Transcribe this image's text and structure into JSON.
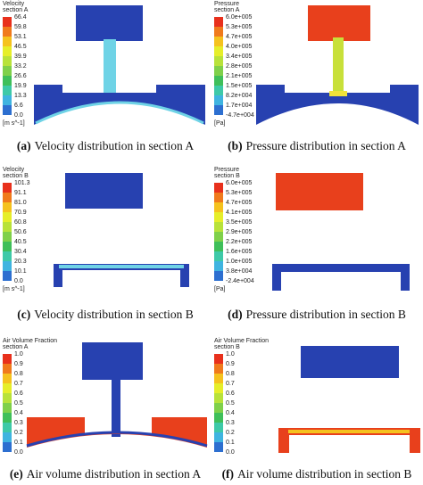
{
  "panels": [
    {
      "caption": {
        "label": "(a)",
        "text": "Velocity distribution in section A"
      },
      "legend": {
        "title": [
          "Velocity",
          "section A"
        ],
        "labels": [
          "66.4",
          "59.8",
          "53.1",
          "46.5",
          "39.9",
          "33.2",
          "26.6",
          "19.9",
          "13.3",
          "6.6",
          "0.0"
        ],
        "unit": "[m s^-1]"
      }
    },
    {
      "caption": {
        "label": "(b)",
        "text": "Pressure distribution in section A"
      },
      "legend": {
        "title": [
          "Pressure",
          "section A"
        ],
        "labels": [
          "6.0e+005",
          "5.3e+005",
          "4.7e+005",
          "4.0e+005",
          "3.4e+005",
          "2.8e+005",
          "2.1e+005",
          "1.5e+005",
          "8.2e+004",
          "1.7e+004",
          "-4.7e+004"
        ],
        "unit": "[Pa]"
      }
    },
    {
      "caption": {
        "label": "(c)",
        "text": "Velocity distribution in section B"
      },
      "legend": {
        "title": [
          "Velocity",
          "section B"
        ],
        "labels": [
          "101.3",
          "91.1",
          "81.0",
          "70.9",
          "60.8",
          "50.6",
          "40.5",
          "30.4",
          "20.3",
          "10.1",
          "0.0"
        ],
        "unit": "[m s^-1]"
      }
    },
    {
      "caption": {
        "label": "(d)",
        "text": "Pressure distribution in section B"
      },
      "legend": {
        "title": [
          "Pressure",
          "section B"
        ],
        "labels": [
          "6.0e+005",
          "5.3e+005",
          "4.7e+005",
          "4.1e+005",
          "3.5e+005",
          "2.9e+005",
          "2.2e+005",
          "1.6e+005",
          "1.0e+005",
          "3.8e+004",
          "-2.4e+004"
        ],
        "unit": "[Pa]"
      }
    },
    {
      "caption": {
        "label": "(e)",
        "text": "Air volume distribution in section A"
      },
      "legend": {
        "title": [
          "Air Volume Fraction",
          "section A"
        ],
        "labels": [
          "1.0",
          "0.9",
          "0.8",
          "0.7",
          "0.6",
          "0.5",
          "0.4",
          "0.3",
          "0.2",
          "0.1",
          "0.0"
        ]
      }
    },
    {
      "caption": {
        "label": "(f)",
        "text": "Air volume distribution in section B"
      },
      "legend": {
        "title": [
          "Air Volume Fraction",
          "section B"
        ],
        "labels": [
          "1.0",
          "0.9",
          "0.8",
          "0.7",
          "0.6",
          "0.5",
          "0.4",
          "0.3",
          "0.2",
          "0.1",
          "0.0"
        ]
      }
    }
  ]
}
